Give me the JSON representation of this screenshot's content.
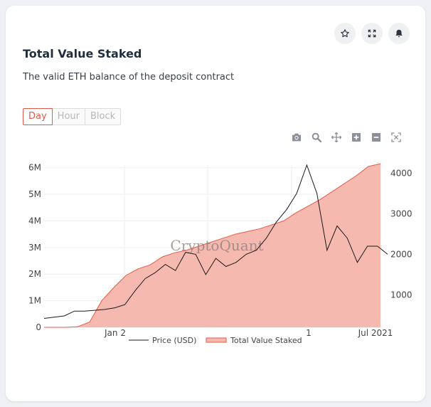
{
  "card": {
    "title": "Total Value Staked",
    "subtitle": "The valid ETH balance of the deposit contract"
  },
  "icons": [
    "star-icon",
    "expand-icon",
    "bell-icon"
  ],
  "interval_tabs": [
    {
      "label": "Day",
      "active": true
    },
    {
      "label": "Hour",
      "active": false
    },
    {
      "label": "Block",
      "active": false
    }
  ],
  "modebar": [
    "camera-icon",
    "zoom-icon",
    "pan-icon",
    "zoom-in-icon",
    "zoom-out-icon",
    "autoscale-icon"
  ],
  "watermark": "CryptoQuant",
  "colors": {
    "accent": "#e45a49",
    "area_fill": "#f6b9b0",
    "area_line": "#e45a49",
    "price_line": "#1a1a1a"
  },
  "chart_data": {
    "type": "area",
    "x_tick_labels": [
      "Jan 2",
      "1",
      "Jul 2021"
    ],
    "left_axis": {
      "ticks": [
        "0",
        "1M",
        "2M",
        "3M",
        "4M",
        "5M",
        "6M"
      ],
      "range": [
        0,
        6100000
      ]
    },
    "right_axis": {
      "ticks": [
        "1000",
        "2000",
        "3000",
        "4000"
      ],
      "range": [
        200,
        4200
      ]
    },
    "legend": {
      "placement": "bottom-center"
    },
    "grid": true,
    "series": [
      {
        "name": "Total Value Staked",
        "axis": "left",
        "type": "area",
        "values": [
          0,
          20000,
          200000,
          1000000,
          1500000,
          1950000,
          2200000,
          2350000,
          2650000,
          2800000,
          2900000,
          3050000,
          3200000,
          3350000,
          3500000,
          3600000,
          3700000,
          3850000,
          4000000,
          4300000,
          4550000,
          4800000,
          5100000,
          5400000,
          5700000,
          6050000,
          6150000
        ]
      },
      {
        "name": "Price (USD)",
        "axis": "right",
        "type": "line",
        "values": [
          420,
          450,
          480,
          600,
          600,
          620,
          640,
          680,
          760,
          1100,
          1400,
          1550,
          1750,
          1600,
          2050,
          2000,
          1500,
          1900,
          1700,
          1800,
          2000,
          2100,
          2400,
          2800,
          3100,
          3500,
          4200,
          3500,
          2100,
          2700,
          2400,
          1800,
          2200,
          2200,
          2000
        ]
      }
    ]
  }
}
